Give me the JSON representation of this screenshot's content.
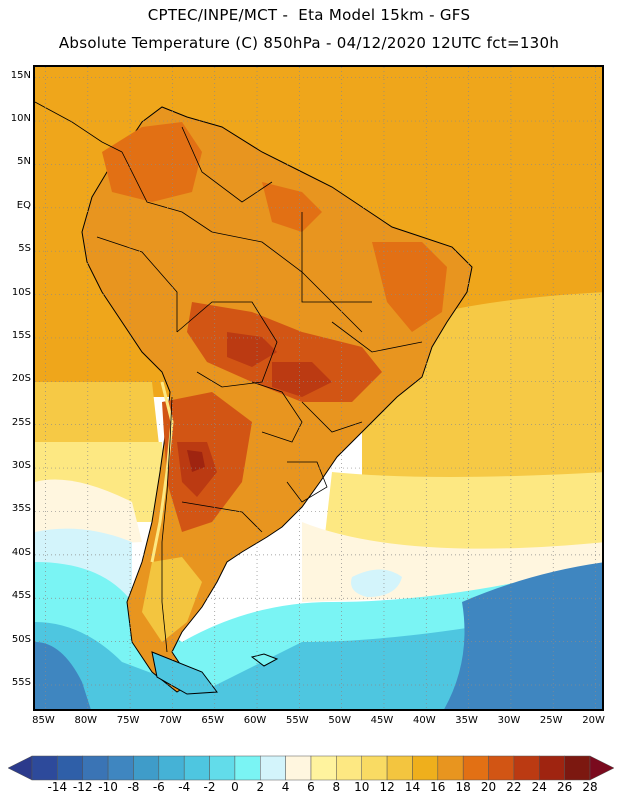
{
  "header": {
    "line1": "CPTEC/INPE/MCT -  Eta Model 15km - GFS",
    "line2": "Absolute Temperature (C) 850hPa - 04/12/2020 12UTC fct=130h"
  },
  "map": {
    "variable": "Absolute Temperature",
    "units": "C",
    "level": "850hPa",
    "region": "South America",
    "lat_range": [
      -58,
      16
    ],
    "lon_range": [
      -86,
      -19
    ],
    "lat_ticks": [
      {
        "value": 15,
        "label": "15N"
      },
      {
        "value": 10,
        "label": "10N"
      },
      {
        "value": 5,
        "label": "5N"
      },
      {
        "value": 0,
        "label": "EQ"
      },
      {
        "value": -5,
        "label": "5S"
      },
      {
        "value": -10,
        "label": "10S"
      },
      {
        "value": -15,
        "label": "15S"
      },
      {
        "value": -20,
        "label": "20S"
      },
      {
        "value": -25,
        "label": "25S"
      },
      {
        "value": -30,
        "label": "30S"
      },
      {
        "value": -35,
        "label": "35S"
      },
      {
        "value": -40,
        "label": "40S"
      },
      {
        "value": -45,
        "label": "45S"
      },
      {
        "value": -50,
        "label": "50S"
      },
      {
        "value": -55,
        "label": "55S"
      }
    ],
    "lon_ticks": [
      {
        "value": -85,
        "label": "85W"
      },
      {
        "value": -80,
        "label": "80W"
      },
      {
        "value": -75,
        "label": "75W"
      },
      {
        "value": -70,
        "label": "70W"
      },
      {
        "value": -65,
        "label": "65W"
      },
      {
        "value": -60,
        "label": "60W"
      },
      {
        "value": -55,
        "label": "55W"
      },
      {
        "value": -50,
        "label": "50W"
      },
      {
        "value": -45,
        "label": "45W"
      },
      {
        "value": -40,
        "label": "40W"
      },
      {
        "value": -35,
        "label": "35W"
      },
      {
        "value": -30,
        "label": "30W"
      },
      {
        "value": -25,
        "label": "25W"
      },
      {
        "value": -20,
        "label": "20W"
      }
    ]
  },
  "colorbar": {
    "labels": [
      "-14",
      "-12",
      "-10",
      "-8",
      "-6",
      "-4",
      "-2",
      "0",
      "2",
      "4",
      "6",
      "8",
      "10",
      "12",
      "14",
      "16",
      "18",
      "20",
      "22",
      "24",
      "26",
      "28"
    ],
    "under_color": "#2b3a8c",
    "over_color": "#7a0a1e",
    "colors": [
      "#2d4a9b",
      "#2f5fa8",
      "#3a74b5",
      "#3f86c0",
      "#3f9cc9",
      "#45b2d6",
      "#4ec6e0",
      "#62dcea",
      "#7af4f4",
      "#d3f4fb",
      "#fff6df",
      "#fff39e",
      "#fde882",
      "#f9db63",
      "#f3c53f",
      "#efaf1c",
      "#e8951f",
      "#e27014",
      "#d25514",
      "#bb3a12",
      "#9f2410",
      "#7c1810"
    ]
  },
  "palette": {
    "ocean_tropical": "#efa61b",
    "ocean_subtropical": "#f6c945",
    "ocean_temperate": "#fde882",
    "ocean_cool": "#fff6df",
    "ocean_cold": "#7af4f4",
    "ocean_colder": "#4ec6e0",
    "ocean_coldest": "#3f86c0",
    "land_warm": "#e8951f",
    "land_hot": "#e27014",
    "land_hotter": "#d25514",
    "land_hottest": "#bb3a12",
    "land_peak": "#9f2410",
    "outline": "#000000",
    "grid": "#8a8a8a"
  }
}
